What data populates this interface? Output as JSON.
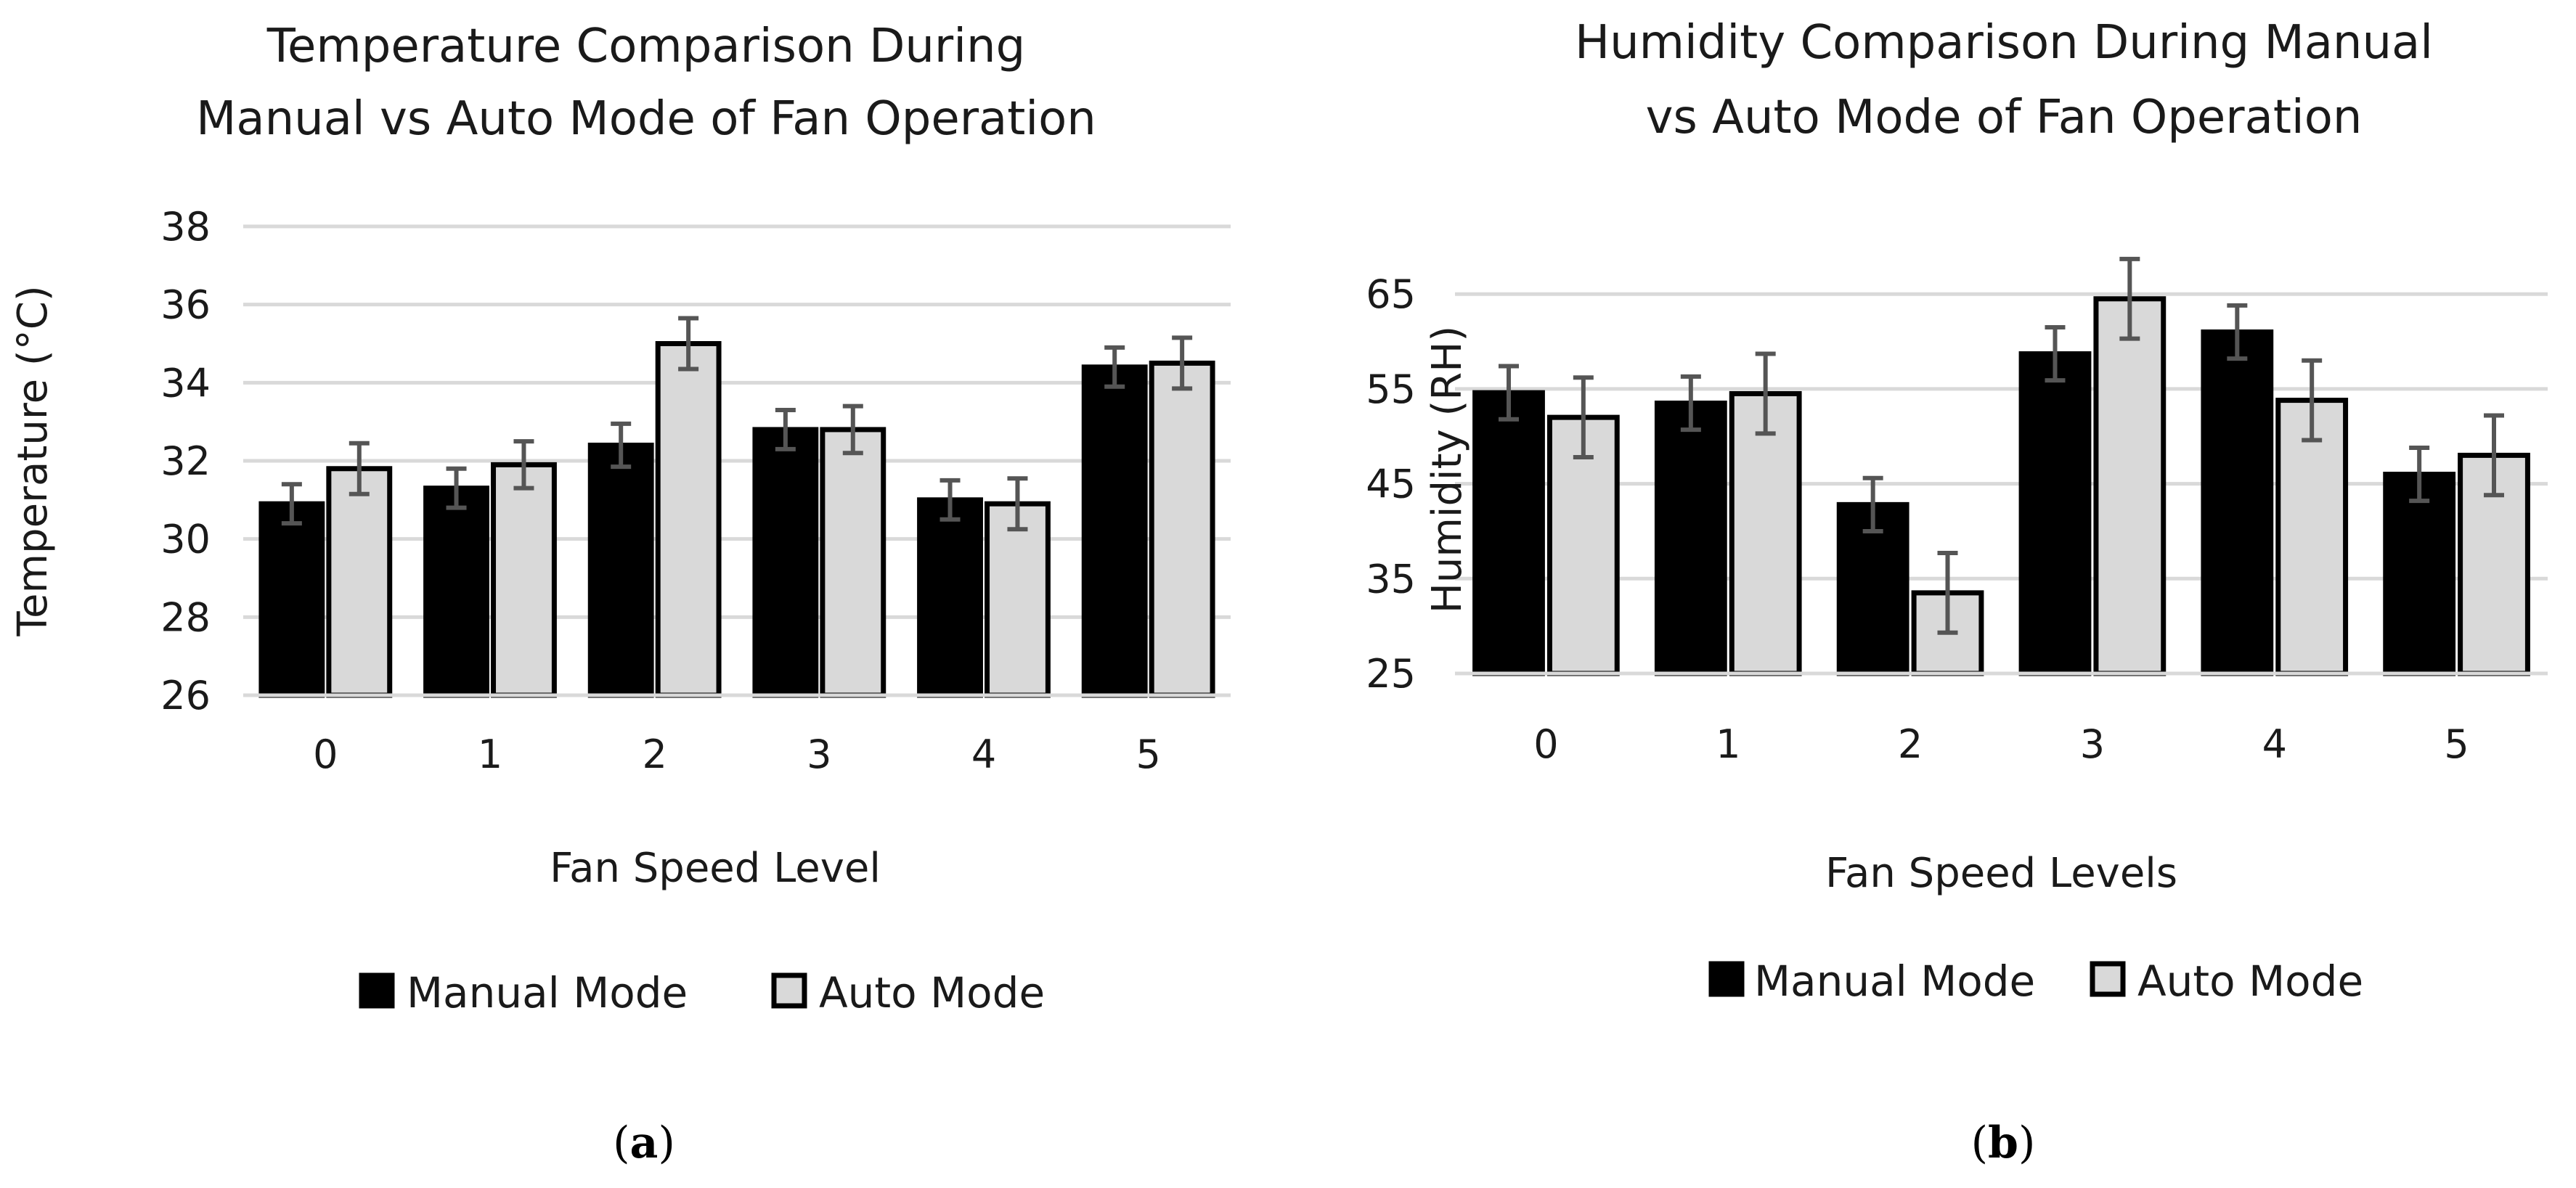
{
  "chart_data": [
    {
      "type": "bar",
      "panel": "a",
      "caption_open": "(",
      "caption_letter": "a",
      "caption_close": ")",
      "title_lines": [
        "Temperature Comparison During",
        "Manual vs Auto Mode of Fan Operation"
      ],
      "xlabel": "Fan Speed Level",
      "ylabel": "Temperature (°C)",
      "ylim": [
        26,
        38
      ],
      "yticks": [
        26,
        28,
        30,
        32,
        34,
        36,
        38
      ],
      "grid": true,
      "legend_position": "bottom",
      "categories": [
        "0",
        "1",
        "2",
        "3",
        "4",
        "5"
      ],
      "series": [
        {
          "name": "Manual Mode",
          "color": "#000000",
          "values": [
            30.9,
            31.3,
            32.4,
            32.8,
            31.0,
            34.4
          ],
          "errors": [
            0.5,
            0.5,
            0.55,
            0.5,
            0.5,
            0.5
          ]
        },
        {
          "name": "Auto Mode",
          "color": "#d9d9d9",
          "values": [
            31.8,
            31.9,
            35.0,
            32.8,
            30.9,
            34.5
          ],
          "errors": [
            0.65,
            0.6,
            0.65,
            0.6,
            0.65,
            0.65
          ]
        }
      ]
    },
    {
      "type": "bar",
      "panel": "b",
      "caption_open": "(",
      "caption_letter": "b",
      "caption_close": ")",
      "title_lines": [
        "Humidity Comparison During Manual",
        "vs Auto Mode of Fan Operation"
      ],
      "xlabel": "Fan Speed Levels",
      "ylabel": "Humidity (RH)",
      "ylim": [
        25,
        68
      ],
      "yticks": [
        25,
        35,
        45,
        55,
        65
      ],
      "grid": true,
      "legend_position": "bottom",
      "categories": [
        "0",
        "1",
        "2",
        "3",
        "4",
        "5"
      ],
      "series": [
        {
          "name": "Manual Mode",
          "color": "#000000",
          "values": [
            54.6,
            53.5,
            42.8,
            58.7,
            61.0,
            46.0
          ],
          "errors": [
            2.8,
            2.8,
            2.8,
            2.8,
            2.8,
            2.8
          ]
        },
        {
          "name": "Auto Mode",
          "color": "#d9d9d9",
          "values": [
            52.0,
            54.5,
            33.5,
            64.5,
            53.8,
            48.0
          ],
          "errors": [
            4.2,
            4.2,
            4.2,
            4.2,
            4.2,
            4.2
          ]
        }
      ]
    }
  ]
}
